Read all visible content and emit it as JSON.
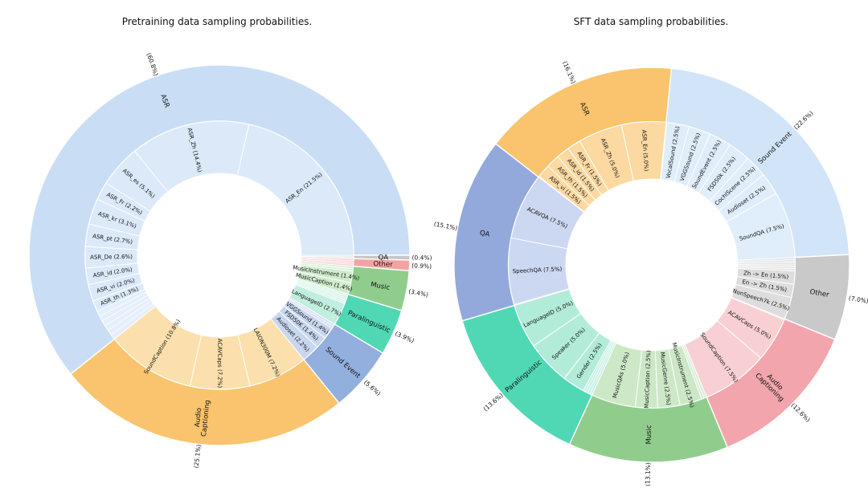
{
  "chart_data": [
    {
      "type": "sunburst",
      "title": "Pretraining data sampling probabilities.",
      "start_angle": 0,
      "direction": "counterclockwise",
      "rings": [
        "category (outer)",
        "dataset (inner)"
      ],
      "sections": [
        {
          "label": "ASR",
          "pct_label": "(60.8%)",
          "value": 60.8,
          "color": "#c9def5",
          "child_color": "#dbe9f9",
          "children": [
            {
              "label": "ASR_En",
              "value": 21.5
            },
            {
              "label": "ASR_Zh",
              "value": 14.4
            },
            {
              "label": "ASR_es",
              "value": 5.1
            },
            {
              "label": "ASR_Fr",
              "value": 2.2
            },
            {
              "label": "ASR_kr",
              "value": 3.1
            },
            {
              "label": "ASR_pt",
              "value": 2.7
            },
            {
              "label": "ASR_De",
              "value": 2.6
            },
            {
              "label": "ASR_id",
              "value": 2.0
            },
            {
              "label": "ASR_vi",
              "value": 2.0
            },
            {
              "label": "ASR_th",
              "value": 1.3
            }
          ]
        },
        {
          "label": "Audio\nCaptioning",
          "pct_label": "(25.1%)",
          "value": 25.1,
          "color": "#f9c46d",
          "child_color": "#fbe0ad",
          "children": [
            {
              "label": "SoundCaption",
              "value": 10.8
            },
            {
              "label": "ACAVCaps",
              "value": 7.2
            },
            {
              "label": "LAION300M",
              "value": 7.2
            }
          ]
        },
        {
          "label": "Sound Event",
          "pct_label": "(5.6%)",
          "value": 5.6,
          "color": "#93afdd",
          "child_color": "#c8d6ef",
          "children": [
            {
              "label": "Audioset",
              "value": 2.2
            },
            {
              "label": "FSD50K",
              "value": 1.4
            },
            {
              "label": "VGGSound",
              "value": 1.4
            }
          ]
        },
        {
          "label": "Paralinguistic",
          "pct_label": "(3.9%)",
          "value": 3.9,
          "color": "#50d8b5",
          "child_color": "#c0eedf",
          "children": [
            {
              "label": "LanguageID",
              "value": 2.7
            }
          ]
        },
        {
          "label": "Music",
          "pct_label": "(3.4%)",
          "value": 3.4,
          "color": "#90cd8d",
          "child_color": "#d0ebcc",
          "children": [
            {
              "label": "MusicCaption",
              "value": 1.4
            },
            {
              "label": "MusicInstrument",
              "value": 1.4
            }
          ]
        },
        {
          "label": "Other",
          "pct_label": "(0.9%)",
          "value": 0.9,
          "color": "#f2a3a3",
          "child_color": "#f6c2c4",
          "children": []
        },
        {
          "label": "QA",
          "pct_label": "(0.4%)",
          "value": 0.4,
          "color": "#c7c7c7",
          "child_color": "#dedede",
          "children": []
        }
      ]
    },
    {
      "type": "sunburst",
      "title": "SFT data sampling probabilities.",
      "start_angle": 3,
      "direction": "counterclockwise",
      "rings": [
        "category (outer)",
        "dataset (inner)"
      ],
      "sections": [
        {
          "label": "Sound Event",
          "pct_label": "(22.6%)",
          "value": 22.6,
          "color": "#d2e4f7",
          "child_color": "#e0edfb",
          "children": [
            {
              "label": "SoundQA",
              "value": 7.5
            },
            {
              "label": "Audioset",
              "value": 2.5
            },
            {
              "label": "CochlScene",
              "value": 2.5
            },
            {
              "label": "FSD50k",
              "value": 2.5
            },
            {
              "label": "SoundEvent",
              "value": 2.5
            },
            {
              "label": "VGGSound",
              "value": 2.5
            },
            {
              "label": "VocalSound",
              "value": 2.5
            }
          ]
        },
        {
          "label": "ASR",
          "pct_label": "(16.1%)",
          "value": 16.1,
          "color": "#f9c46d",
          "child_color": "#fbd9a1",
          "children": [
            {
              "label": "ASR_En",
              "value": 5.0
            },
            {
              "label": "ASR_Zh",
              "value": 5.0
            },
            {
              "label": "ASR_Fr",
              "value": 1.5
            },
            {
              "label": "ASR_id",
              "value": 1.5
            },
            {
              "label": "ASR_th",
              "value": 1.5
            },
            {
              "label": "ASR_vi",
              "value": 1.5
            }
          ]
        },
        {
          "label": "QA",
          "pct_label": "(15.1%)",
          "value": 15.1,
          "color": "#93a9dc",
          "child_color": "#ccd7f1",
          "children": [
            {
              "label": "ACAVQA",
              "value": 7.5
            },
            {
              "label": "SpeechQA",
              "value": 7.5
            }
          ]
        },
        {
          "label": "Paralinguistic",
          "pct_label": "(13.6%)",
          "value": 13.6,
          "color": "#50d8b5",
          "child_color": "#b2ecd9",
          "children": [
            {
              "label": "LanguageID",
              "value": 5.0
            },
            {
              "label": "Speaker",
              "value": 5.0
            },
            {
              "label": "Gender",
              "value": 2.5
            }
          ]
        },
        {
          "label": "Music",
          "pct_label": "(13.1%)",
          "value": 13.1,
          "color": "#90cd8d",
          "child_color": "#cde8c7",
          "children": [
            {
              "label": "MusicQAs",
              "value": 5.0
            },
            {
              "label": "MusicCaption",
              "value": 2.5
            },
            {
              "label": "MusicGenre",
              "value": 2.5
            },
            {
              "label": "MusicInstrument",
              "value": 2.5
            }
          ]
        },
        {
          "label": "Audio\nCaptioning",
          "pct_label": "(12.6%)",
          "value": 12.6,
          "color": "#f2a5ad",
          "child_color": "#f8d0d4",
          "children": [
            {
              "label": "SoundCaption",
              "value": 7.5
            },
            {
              "label": "ACAVCaps",
              "value": 5.0
            }
          ]
        },
        {
          "label": "Other",
          "pct_label": "(7.0%)",
          "value": 7.0,
          "color": "#c9c9c9",
          "child_color": "#dddddd",
          "children": [
            {
              "label": "NonSpeech7k",
              "value": 2.5
            },
            {
              "label": "En -> Zh",
              "value": 1.5
            },
            {
              "label": "Zh -> En",
              "value": 1.5
            }
          ]
        }
      ]
    }
  ]
}
